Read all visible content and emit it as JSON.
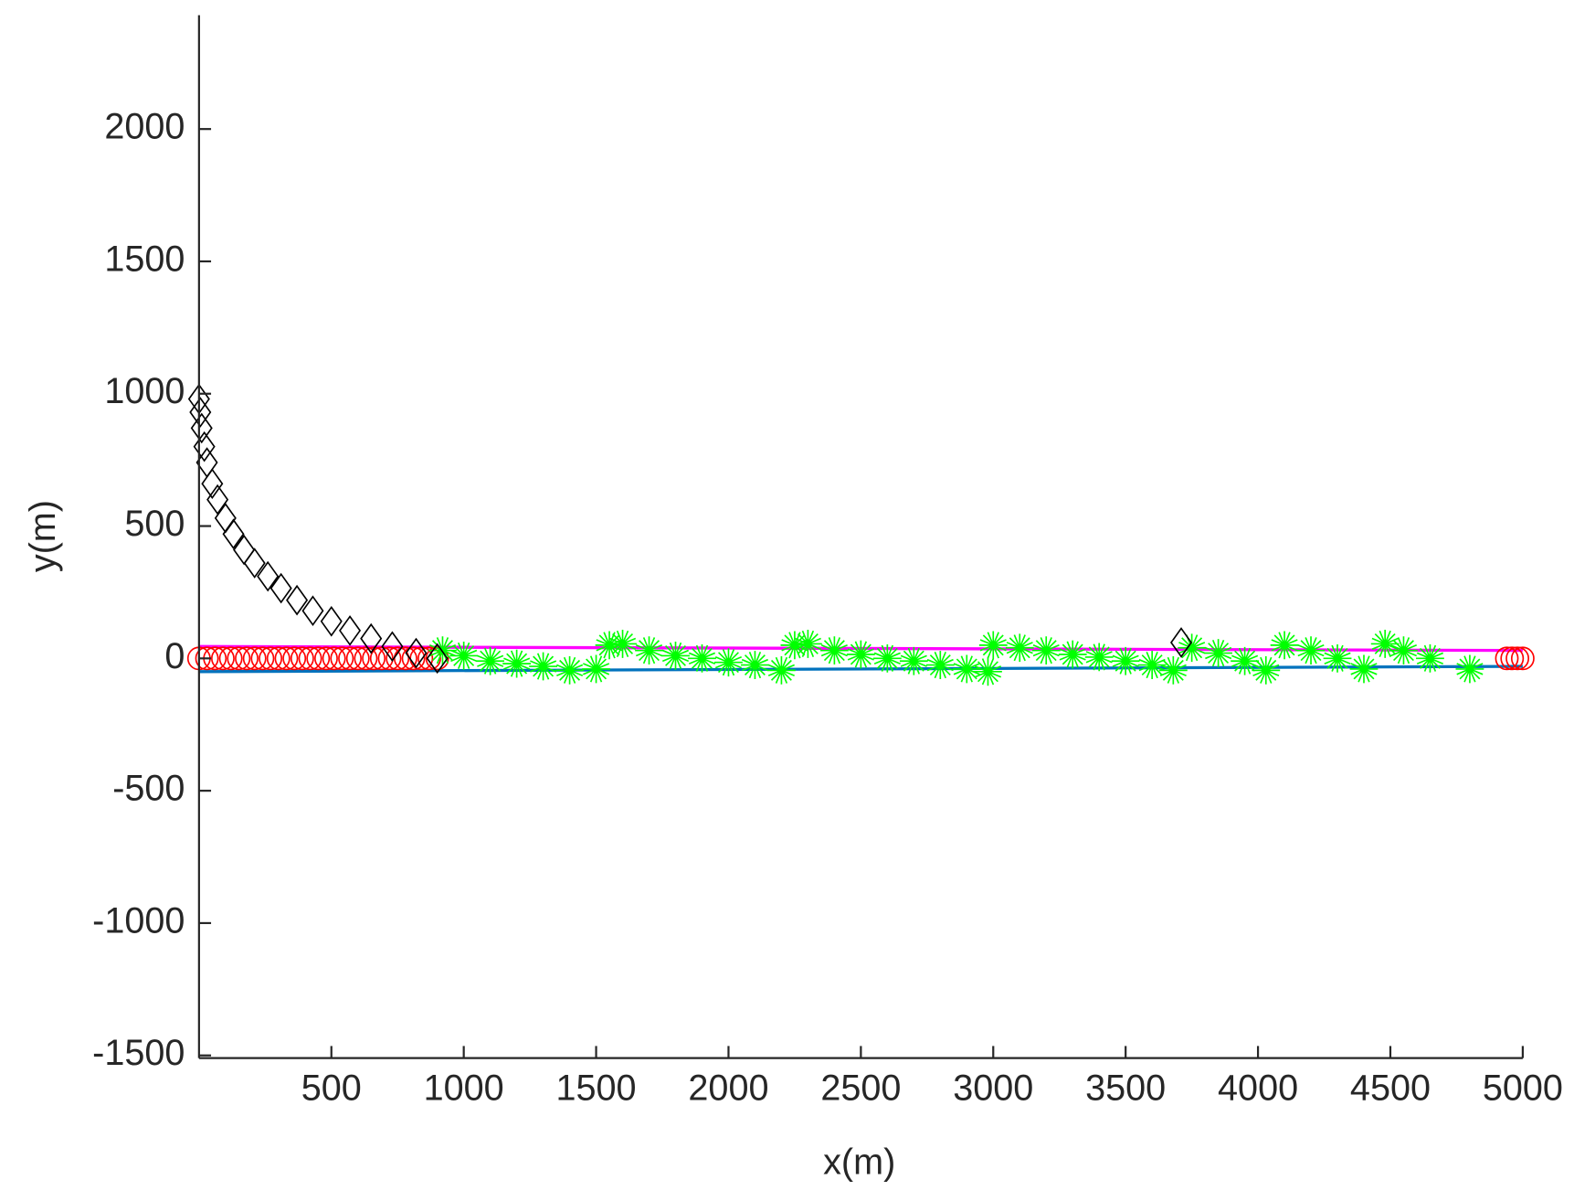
{
  "chart_data": {
    "type": "scatter",
    "x_label": "x(m)",
    "y_label": "y(m)",
    "xlim": [
      0,
      5000
    ],
    "ylim": [
      -1510,
      2430
    ],
    "xticks": [
      500,
      1000,
      1500,
      2000,
      2500,
      3000,
      3500,
      4000,
      4500,
      5000
    ],
    "yticks": [
      -1500,
      -1000,
      -500,
      0,
      500,
      1000,
      1500,
      2000
    ],
    "series": [
      {
        "color": "#ff00ff",
        "marker": "none",
        "x": [
          0,
          5000
        ],
        "y": [
          45,
          30
        ]
      },
      {
        "color": "#0072bd",
        "marker": "none",
        "x": [
          0,
          5000
        ],
        "y": [
          -50,
          -30
        ]
      },
      {
        "color": "#ff0000",
        "marker": "circle",
        "x": [
          0,
          30,
          60,
          90,
          120,
          150,
          180,
          210,
          240,
          270,
          300,
          330,
          360,
          390,
          420,
          450,
          480,
          510,
          540,
          570,
          600,
          630,
          660,
          690,
          720,
          750,
          780,
          810,
          840,
          870,
          900,
          4940,
          4960,
          4980,
          5000
        ],
        "y": [
          0,
          0,
          0,
          0,
          0,
          0,
          0,
          0,
          0,
          0,
          0,
          0,
          0,
          0,
          0,
          0,
          0,
          0,
          0,
          0,
          0,
          0,
          0,
          0,
          0,
          0,
          0,
          0,
          0,
          0,
          0,
          0,
          0,
          0,
          0
        ]
      },
      {
        "color": "#00ff00",
        "marker": "star",
        "x": [
          920,
          1000,
          1100,
          1200,
          1300,
          1400,
          1500,
          1550,
          1600,
          1700,
          1800,
          1900,
          2000,
          2100,
          2200,
          2250,
          2300,
          2400,
          2500,
          2600,
          2700,
          2800,
          2900,
          2980,
          3000,
          3100,
          3200,
          3300,
          3400,
          3500,
          3600,
          3680,
          3750,
          3850,
          3950,
          4030,
          4100,
          4200,
          4300,
          4400,
          4480,
          4550,
          4650,
          4800
        ],
        "y": [
          30,
          10,
          -10,
          -20,
          -30,
          -45,
          -40,
          50,
          55,
          30,
          10,
          0,
          -15,
          -25,
          -45,
          50,
          55,
          30,
          15,
          0,
          -10,
          -25,
          -40,
          -50,
          50,
          40,
          30,
          15,
          5,
          -10,
          -25,
          -45,
          40,
          20,
          -10,
          -45,
          50,
          30,
          0,
          -40,
          55,
          30,
          0,
          -40
        ]
      },
      {
        "color": "#000000",
        "marker": "diamond",
        "x": [
          0,
          5,
          10,
          20,
          30,
          50,
          70,
          100,
          130,
          170,
          210,
          260,
          310,
          370,
          430,
          500,
          570,
          650,
          730,
          820,
          900,
          3710
        ],
        "y": [
          980,
          930,
          870,
          800,
          740,
          660,
          600,
          530,
          470,
          410,
          360,
          310,
          265,
          220,
          180,
          140,
          105,
          75,
          45,
          20,
          0,
          60
        ]
      }
    ]
  }
}
